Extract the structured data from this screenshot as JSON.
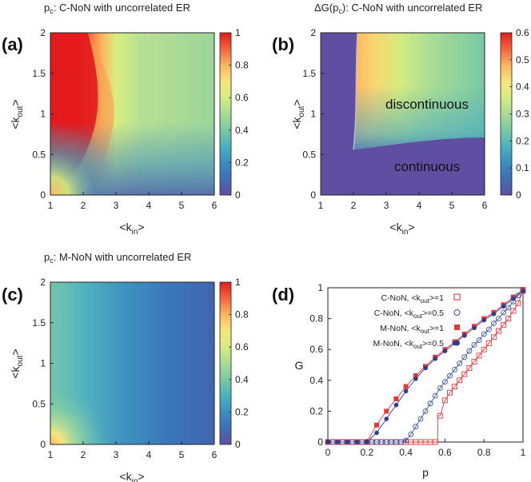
{
  "chart_data": [
    {
      "type": "heatmap",
      "panel": "(a)",
      "title": "p_c: C-NoN with uncorrelated ER",
      "title_main": "p",
      "title_sub": "c",
      "title_rest": ": C-NoN with uncorrelated ER",
      "xlabel": "<k_in>",
      "ylabel": "<k_out>",
      "xlim": [
        1,
        6
      ],
      "ylim": [
        0,
        2
      ],
      "xticks": [
        "1",
        "2",
        "3",
        "4",
        "5",
        "6"
      ],
      "yticks": [
        "0",
        "0.5",
        "1",
        "1.5",
        "2"
      ],
      "colorbar": {
        "min": 0,
        "max": 1,
        "ticks": [
          "0",
          "0.2",
          "0.4",
          "0.6",
          "0.8",
          "1"
        ]
      }
    },
    {
      "type": "heatmap",
      "panel": "(b)",
      "title": "ΔG(p_c): C-NoN with uncorrelated ER",
      "title_main": "ΔG(p",
      "title_sub": "c",
      "title_rest": "): C-NoN with uncorrelated ER",
      "xlabel": "<k_in>",
      "ylabel": "<k_out>",
      "xlim": [
        1,
        6
      ],
      "ylim": [
        0,
        2
      ],
      "xticks": [
        "1",
        "2",
        "3",
        "4",
        "5",
        "6"
      ],
      "yticks": [
        "0",
        "0.5",
        "1",
        "1.5",
        "2"
      ],
      "colorbar": {
        "min": 0,
        "max": 0.6,
        "ticks": [
          "0",
          "0.1",
          "0.2",
          "0.3",
          "0.4",
          "0.5",
          "0.6"
        ]
      },
      "annotations": [
        "discontinuous",
        "continuous"
      ]
    },
    {
      "type": "heatmap",
      "panel": "(c)",
      "title": "p_c: M-NoN with uncorrelated ER",
      "title_main": "p",
      "title_sub": "c",
      "title_rest": ": M-NoN with uncorrelated ER",
      "xlabel": "<k_in>",
      "ylabel": "<k_out>",
      "xlim": [
        1,
        6
      ],
      "ylim": [
        0,
        2
      ],
      "xticks": [
        "1",
        "2",
        "3",
        "4",
        "5",
        "6"
      ],
      "yticks": [
        "0",
        "0.5",
        "1",
        "1.5",
        "2"
      ],
      "colorbar": {
        "min": 0,
        "max": 1,
        "ticks": [
          "0",
          "0.2",
          "0.4",
          "0.6",
          "0.8",
          "1"
        ]
      }
    },
    {
      "type": "line",
      "panel": "(d)",
      "xlabel": "p",
      "ylabel": "G",
      "xlim": [
        0,
        1
      ],
      "ylim": [
        0,
        1
      ],
      "xticks": [
        "0",
        "0.2",
        "0.4",
        "0.6",
        "0.8",
        "1"
      ],
      "yticks": [
        "0",
        "0.2",
        "0.4",
        "0.6",
        "0.8",
        "1"
      ],
      "series": [
        {
          "name": "C-NoN, <k_out>=1",
          "color": "#e8363a",
          "marker": "open-square",
          "points": [
            [
              0,
              0
            ],
            [
              0.025,
              0
            ],
            [
              0.05,
              0
            ],
            [
              0.075,
              0
            ],
            [
              0.1,
              0
            ],
            [
              0.125,
              0
            ],
            [
              0.15,
              0
            ],
            [
              0.175,
              0
            ],
            [
              0.2,
              0
            ],
            [
              0.225,
              0
            ],
            [
              0.25,
              0
            ],
            [
              0.275,
              0
            ],
            [
              0.3,
              0
            ],
            [
              0.325,
              0
            ],
            [
              0.35,
              0
            ],
            [
              0.375,
              0
            ],
            [
              0.4,
              0
            ],
            [
              0.425,
              0
            ],
            [
              0.45,
              0
            ],
            [
              0.475,
              0
            ],
            [
              0.5,
              0
            ],
            [
              0.525,
              0
            ],
            [
              0.55,
              0
            ],
            [
              0.575,
              0.17
            ],
            [
              0.6,
              0.27
            ],
            [
              0.625,
              0.32
            ],
            [
              0.65,
              0.36
            ],
            [
              0.675,
              0.4
            ],
            [
              0.7,
              0.44
            ],
            [
              0.725,
              0.48
            ],
            [
              0.75,
              0.52
            ],
            [
              0.775,
              0.56
            ],
            [
              0.8,
              0.6
            ],
            [
              0.825,
              0.64
            ],
            [
              0.85,
              0.68
            ],
            [
              0.875,
              0.72
            ],
            [
              0.9,
              0.76
            ],
            [
              0.925,
              0.8
            ],
            [
              0.95,
              0.85
            ],
            [
              0.975,
              0.9
            ],
            [
              1.0,
              0.98
            ]
          ]
        },
        {
          "name": "C-NoN, <k_out>=0.5",
          "color": "#3b55a5",
          "marker": "open-circle",
          "points": [
            [
              0,
              0
            ],
            [
              0.025,
              0
            ],
            [
              0.05,
              0
            ],
            [
              0.075,
              0
            ],
            [
              0.1,
              0
            ],
            [
              0.125,
              0
            ],
            [
              0.15,
              0
            ],
            [
              0.175,
              0
            ],
            [
              0.2,
              0
            ],
            [
              0.225,
              0
            ],
            [
              0.25,
              0
            ],
            [
              0.275,
              0
            ],
            [
              0.3,
              0
            ],
            [
              0.325,
              0
            ],
            [
              0.35,
              0
            ],
            [
              0.375,
              0
            ],
            [
              0.4,
              0.01
            ],
            [
              0.425,
              0.05
            ],
            [
              0.45,
              0.1
            ],
            [
              0.475,
              0.15
            ],
            [
              0.5,
              0.2
            ],
            [
              0.525,
              0.25
            ],
            [
              0.55,
              0.3
            ],
            [
              0.575,
              0.35
            ],
            [
              0.6,
              0.39
            ],
            [
              0.625,
              0.43
            ],
            [
              0.65,
              0.47
            ],
            [
              0.675,
              0.51
            ],
            [
              0.7,
              0.55
            ],
            [
              0.725,
              0.59
            ],
            [
              0.75,
              0.63
            ],
            [
              0.775,
              0.66
            ],
            [
              0.8,
              0.7
            ],
            [
              0.825,
              0.73
            ],
            [
              0.85,
              0.77
            ],
            [
              0.875,
              0.8
            ],
            [
              0.9,
              0.84
            ],
            [
              0.925,
              0.87
            ],
            [
              0.95,
              0.91
            ],
            [
              0.975,
              0.95
            ],
            [
              1.0,
              0.98
            ]
          ]
        },
        {
          "name": "M-NoN, <k_out>=1",
          "color": "#e8363a",
          "marker": "filled-square",
          "points": [
            [
              0,
              0
            ],
            [
              0.05,
              0
            ],
            [
              0.1,
              0
            ],
            [
              0.15,
              0
            ],
            [
              0.2,
              0
            ],
            [
              0.25,
              0.11
            ],
            [
              0.3,
              0.2
            ],
            [
              0.35,
              0.28
            ],
            [
              0.4,
              0.36
            ],
            [
              0.45,
              0.43
            ],
            [
              0.5,
              0.49
            ],
            [
              0.55,
              0.55
            ],
            [
              0.6,
              0.6
            ],
            [
              0.65,
              0.65
            ],
            [
              0.7,
              0.7
            ],
            [
              0.75,
              0.75
            ],
            [
              0.8,
              0.8
            ],
            [
              0.85,
              0.84
            ],
            [
              0.9,
              0.89
            ],
            [
              0.95,
              0.94
            ],
            [
              1.0,
              0.99
            ]
          ]
        },
        {
          "name": "M-NoN, <k_out>=0.5",
          "color": "#2b3f8f",
          "marker": "filled-circle",
          "points": [
            [
              0,
              0
            ],
            [
              0.05,
              0
            ],
            [
              0.1,
              0
            ],
            [
              0.15,
              0
            ],
            [
              0.2,
              0
            ],
            [
              0.25,
              0.06
            ],
            [
              0.3,
              0.15
            ],
            [
              0.35,
              0.24
            ],
            [
              0.4,
              0.33
            ],
            [
              0.45,
              0.41
            ],
            [
              0.5,
              0.48
            ],
            [
              0.55,
              0.54
            ],
            [
              0.6,
              0.59
            ],
            [
              0.65,
              0.64
            ],
            [
              0.7,
              0.69
            ],
            [
              0.75,
              0.74
            ],
            [
              0.8,
              0.79
            ],
            [
              0.85,
              0.83
            ],
            [
              0.9,
              0.88
            ],
            [
              0.95,
              0.93
            ],
            [
              1.0,
              0.98
            ]
          ]
        }
      ]
    }
  ]
}
